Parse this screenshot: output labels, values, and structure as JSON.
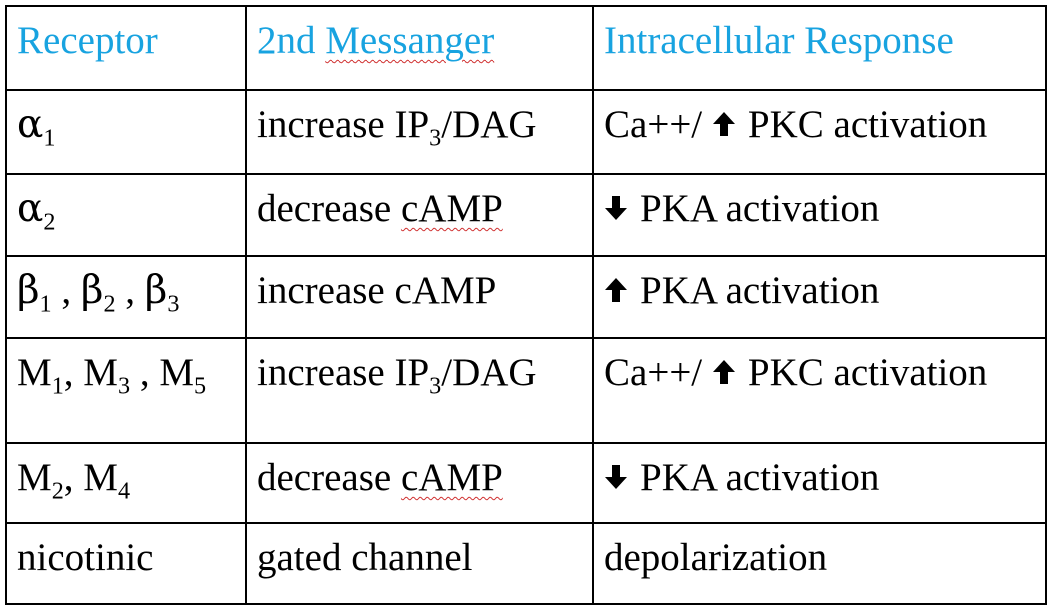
{
  "headers": {
    "receptor": "Receptor",
    "messenger": "2nd Messanger",
    "response": "Intracellular Response"
  },
  "rows": [
    {
      "receptor": {
        "parts": [
          {
            "sym": "α",
            "sub": "1"
          }
        ]
      },
      "messenger_pre": "increase IP",
      "messenger_sub": "3",
      "messenger_post": "/DAG",
      "response_prefix": "Ca++/",
      "response_arrow": "up-arrow-icon",
      "response_text": "PKC activation"
    },
    {
      "receptor": {
        "parts": [
          {
            "sym": "α",
            "sub": "2"
          }
        ]
      },
      "messenger": "decrease cAMP",
      "response_arrow": "down-arrow-icon",
      "response_text": "PKA activation"
    },
    {
      "receptor": {
        "parts": [
          {
            "sym": "β",
            "sub": "1"
          },
          {
            "sym": "β",
            "sub": "2"
          },
          {
            "sym": "β",
            "sub": "3"
          }
        ]
      },
      "messenger": "increase cAMP",
      "response_arrow": "up-arrow-icon",
      "response_text": "PKA activation"
    },
    {
      "receptor": {
        "parts": [
          {
            "sym": "M",
            "sub": "1"
          },
          {
            "sym": "M",
            "sub": "3"
          },
          {
            "sym": "M",
            "sub": "5"
          }
        ]
      },
      "messenger_pre": "increase IP",
      "messenger_sub": "3",
      "messenger_post": "/DAG",
      "response_prefix": "Ca++/",
      "response_arrow": "up-arrow-icon",
      "response_text": "PKC activation"
    },
    {
      "receptor": {
        "parts": [
          {
            "sym": "M",
            "sub": "2"
          },
          {
            "sym": "M",
            "sub": "4"
          }
        ]
      },
      "messenger": "decrease cAMP",
      "response_arrow": "down-arrow-icon",
      "response_text": "PKA activation"
    },
    {
      "receptor": {
        "text": "nicotinic"
      },
      "messenger": "gated channel",
      "response": "depolarization"
    }
  ],
  "colors": {
    "header_text": "#18a3e0",
    "body_text": "#000000",
    "border": "#000000",
    "spellcheck": "#d03030"
  }
}
